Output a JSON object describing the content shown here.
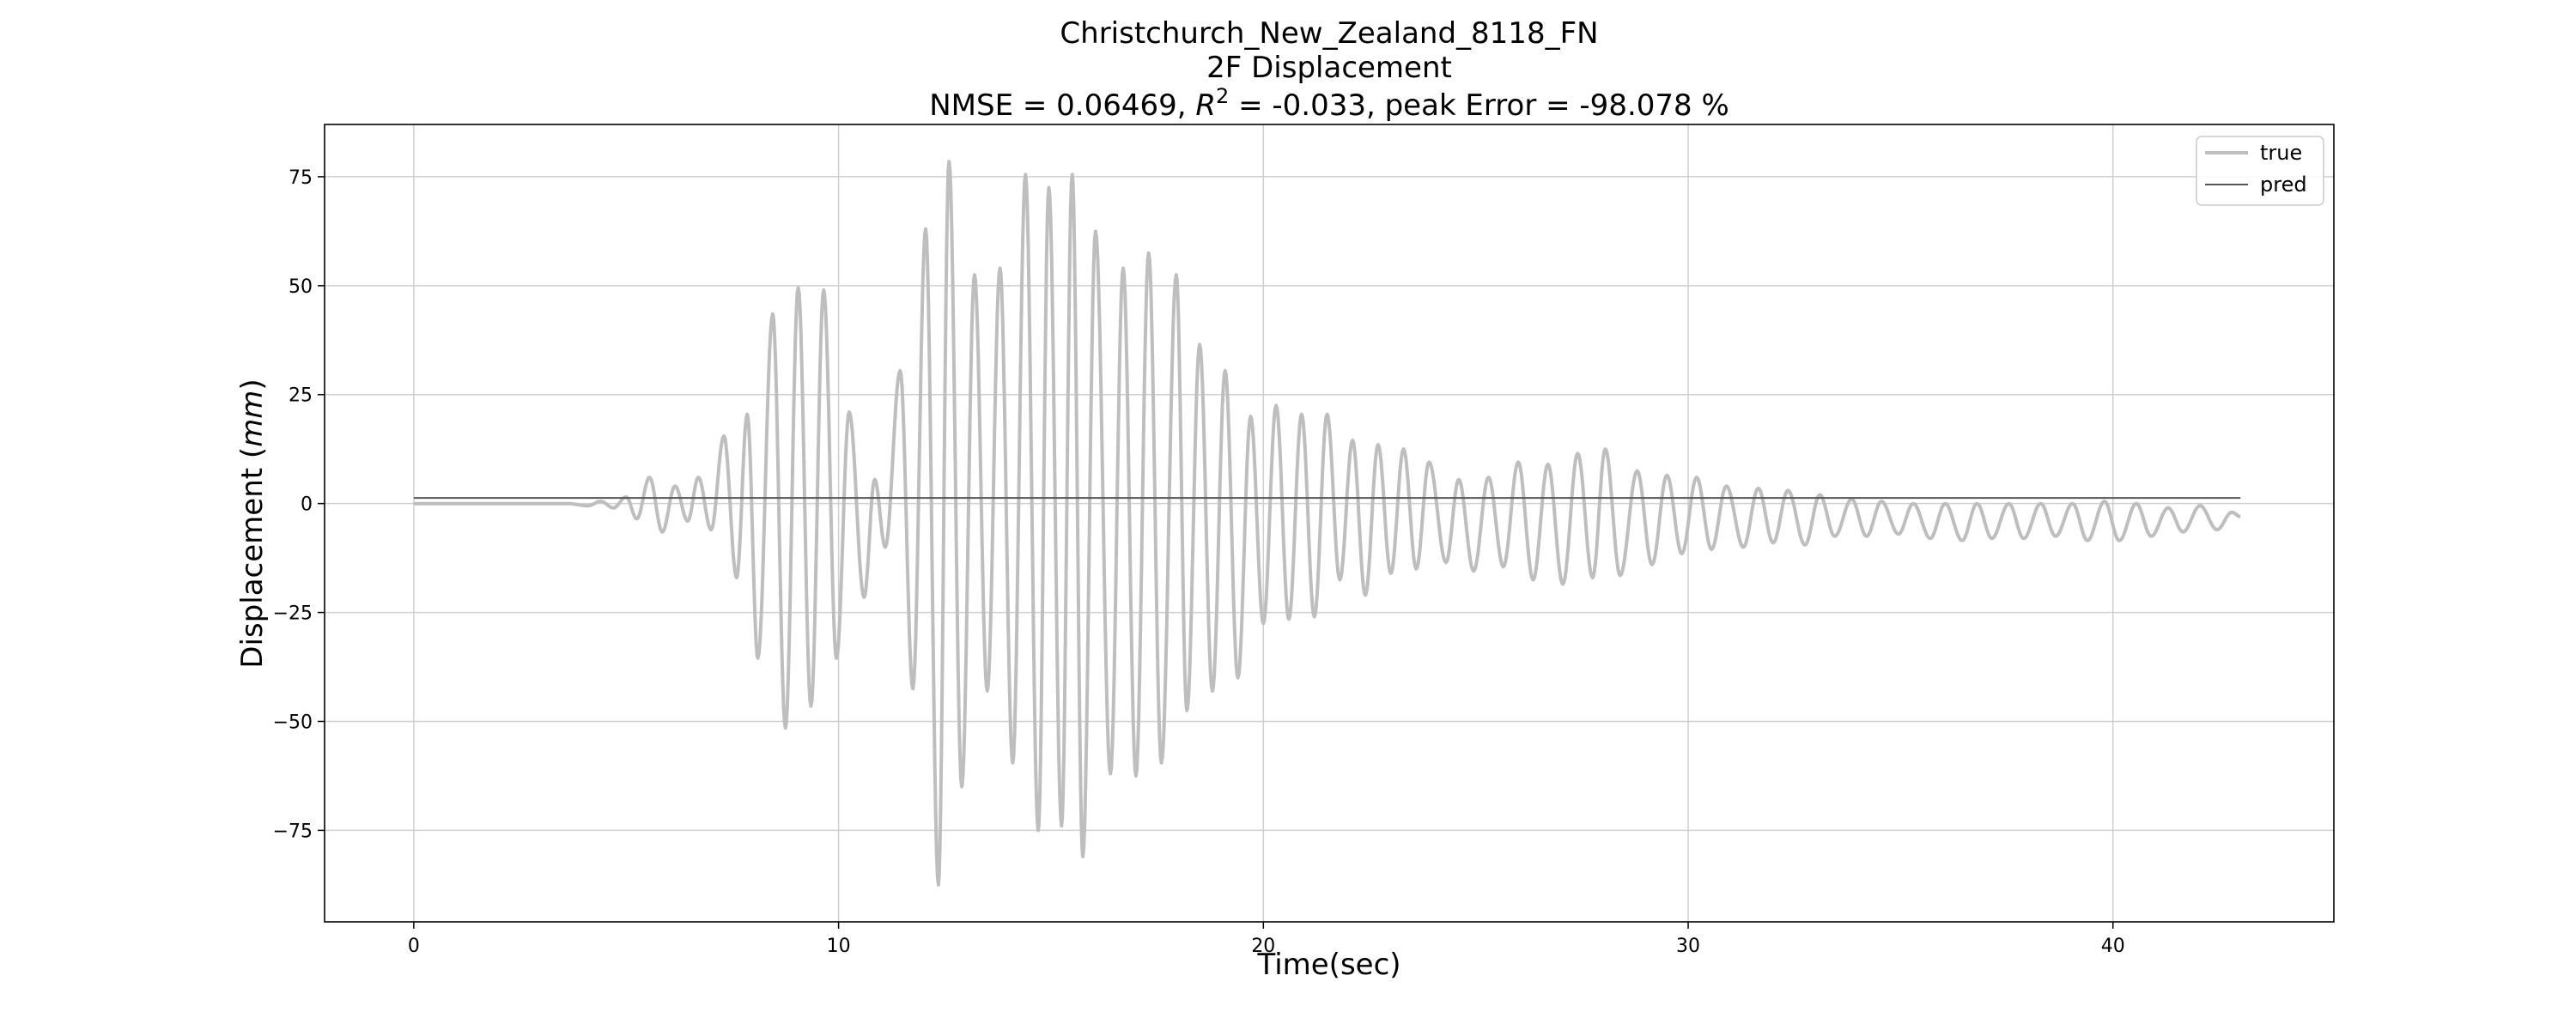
{
  "chart_data": {
    "type": "line",
    "title": "Christchurch_New_Zealand_8118_FN",
    "subtitle": "2F Displacement",
    "metrics": {
      "nmse_label": "NMSE = 0.06469, ",
      "r2_symbol": "R",
      "r2_exp": "2",
      "r2_value_label": " = -0.033, peak Error = -98.078 %"
    },
    "xlabel": "Time(sec)",
    "ylabel_prefix": "Displacement (",
    "ylabel_unit": "mm",
    "ylabel_suffix": ")",
    "xlim": [
      -2.1,
      45.2
    ],
    "ylim": [
      -96,
      87
    ],
    "xticks": [
      0,
      10,
      20,
      30,
      40
    ],
    "yticks": [
      -75,
      -50,
      -25,
      0,
      25,
      50,
      75
    ],
    "grid": true,
    "legend_position": "top-right",
    "series": [
      {
        "name": "true",
        "color": "#bebebe",
        "extrema": [
          [
            0,
            0
          ],
          [
            3.6,
            0
          ],
          [
            4.1,
            -0.5
          ],
          [
            4.4,
            0.5
          ],
          [
            4.7,
            -1
          ],
          [
            5.0,
            1.5
          ],
          [
            5.25,
            -3.5
          ],
          [
            5.55,
            6
          ],
          [
            5.85,
            -6.5
          ],
          [
            6.15,
            4
          ],
          [
            6.45,
            -4
          ],
          [
            6.7,
            6
          ],
          [
            7.0,
            -6
          ],
          [
            7.3,
            15.5
          ],
          [
            7.6,
            -17
          ],
          [
            7.85,
            20.5
          ],
          [
            8.1,
            -35.5
          ],
          [
            8.45,
            43.5
          ],
          [
            8.75,
            -51.5
          ],
          [
            9.05,
            49.5
          ],
          [
            9.35,
            -46.5
          ],
          [
            9.65,
            49
          ],
          [
            9.95,
            -35.5
          ],
          [
            10.25,
            21
          ],
          [
            10.6,
            -21.5
          ],
          [
            10.85,
            5.5
          ],
          [
            11.1,
            -10
          ],
          [
            11.45,
            30.5
          ],
          [
            11.75,
            -42.5
          ],
          [
            12.05,
            63
          ],
          [
            12.35,
            -87.5
          ],
          [
            12.6,
            78.5
          ],
          [
            12.9,
            -65
          ],
          [
            13.2,
            52.5
          ],
          [
            13.5,
            -43
          ],
          [
            13.8,
            54
          ],
          [
            14.1,
            -59.5
          ],
          [
            14.4,
            75.5
          ],
          [
            14.7,
            -75
          ],
          [
            14.95,
            72.5
          ],
          [
            15.25,
            -74
          ],
          [
            15.5,
            75.5
          ],
          [
            15.75,
            -81
          ],
          [
            16.05,
            62.5
          ],
          [
            16.4,
            -62
          ],
          [
            16.7,
            54
          ],
          [
            17.0,
            -62.5
          ],
          [
            17.3,
            57.5
          ],
          [
            17.6,
            -59.5
          ],
          [
            17.95,
            52.5
          ],
          [
            18.2,
            -47.5
          ],
          [
            18.5,
            36.5
          ],
          [
            18.8,
            -43
          ],
          [
            19.1,
            30.5
          ],
          [
            19.4,
            -40
          ],
          [
            19.7,
            20
          ],
          [
            20.0,
            -27.5
          ],
          [
            20.3,
            22.5
          ],
          [
            20.6,
            -26.5
          ],
          [
            20.9,
            20.5
          ],
          [
            21.2,
            -26
          ],
          [
            21.5,
            20.5
          ],
          [
            21.8,
            -17.5
          ],
          [
            22.1,
            14.5
          ],
          [
            22.4,
            -21
          ],
          [
            22.7,
            13.5
          ],
          [
            23.0,
            -16
          ],
          [
            23.3,
            12.5
          ],
          [
            23.6,
            -15
          ],
          [
            23.9,
            9.5
          ],
          [
            24.3,
            -13.5
          ],
          [
            24.6,
            5.5
          ],
          [
            24.95,
            -15.5
          ],
          [
            25.3,
            6
          ],
          [
            25.65,
            -14.5
          ],
          [
            26.0,
            9.5
          ],
          [
            26.35,
            -17.5
          ],
          [
            26.7,
            9
          ],
          [
            27.05,
            -18.5
          ],
          [
            27.4,
            11.5
          ],
          [
            27.75,
            -17
          ],
          [
            28.05,
            12.5
          ],
          [
            28.4,
            -16.5
          ],
          [
            28.8,
            7.5
          ],
          [
            29.15,
            -14
          ],
          [
            29.5,
            6.5
          ],
          [
            29.85,
            -11.5
          ],
          [
            30.2,
            6
          ],
          [
            30.55,
            -10.5
          ],
          [
            30.9,
            4
          ],
          [
            31.3,
            -10
          ],
          [
            31.65,
            3.5
          ],
          [
            32.0,
            -9
          ],
          [
            32.35,
            3
          ],
          [
            32.75,
            -9.5
          ],
          [
            33.1,
            2
          ],
          [
            33.45,
            -7.5
          ],
          [
            33.85,
            1
          ],
          [
            34.2,
            -7.5
          ],
          [
            34.55,
            0.5
          ],
          [
            34.95,
            -7
          ],
          [
            35.3,
            0
          ],
          [
            35.7,
            -8
          ],
          [
            36.05,
            0
          ],
          [
            36.45,
            -8.5
          ],
          [
            36.8,
            0
          ],
          [
            37.15,
            -8
          ],
          [
            37.55,
            0
          ],
          [
            37.9,
            -8
          ],
          [
            38.3,
            0
          ],
          [
            38.65,
            -7.5
          ],
          [
            39.05,
            0
          ],
          [
            39.4,
            -8.5
          ],
          [
            39.8,
            0.5
          ],
          [
            40.15,
            -8.5
          ],
          [
            40.55,
            0
          ],
          [
            40.9,
            -7.5
          ],
          [
            41.3,
            -1
          ],
          [
            41.65,
            -6.5
          ],
          [
            42.05,
            -0.5
          ],
          [
            42.45,
            -6
          ],
          [
            42.8,
            -2
          ],
          [
            43.0,
            -3
          ]
        ]
      },
      {
        "name": "pred",
        "color": "#555555",
        "points": [
          [
            0,
            1.3
          ],
          [
            43.0,
            1.3
          ]
        ]
      }
    ]
  }
}
